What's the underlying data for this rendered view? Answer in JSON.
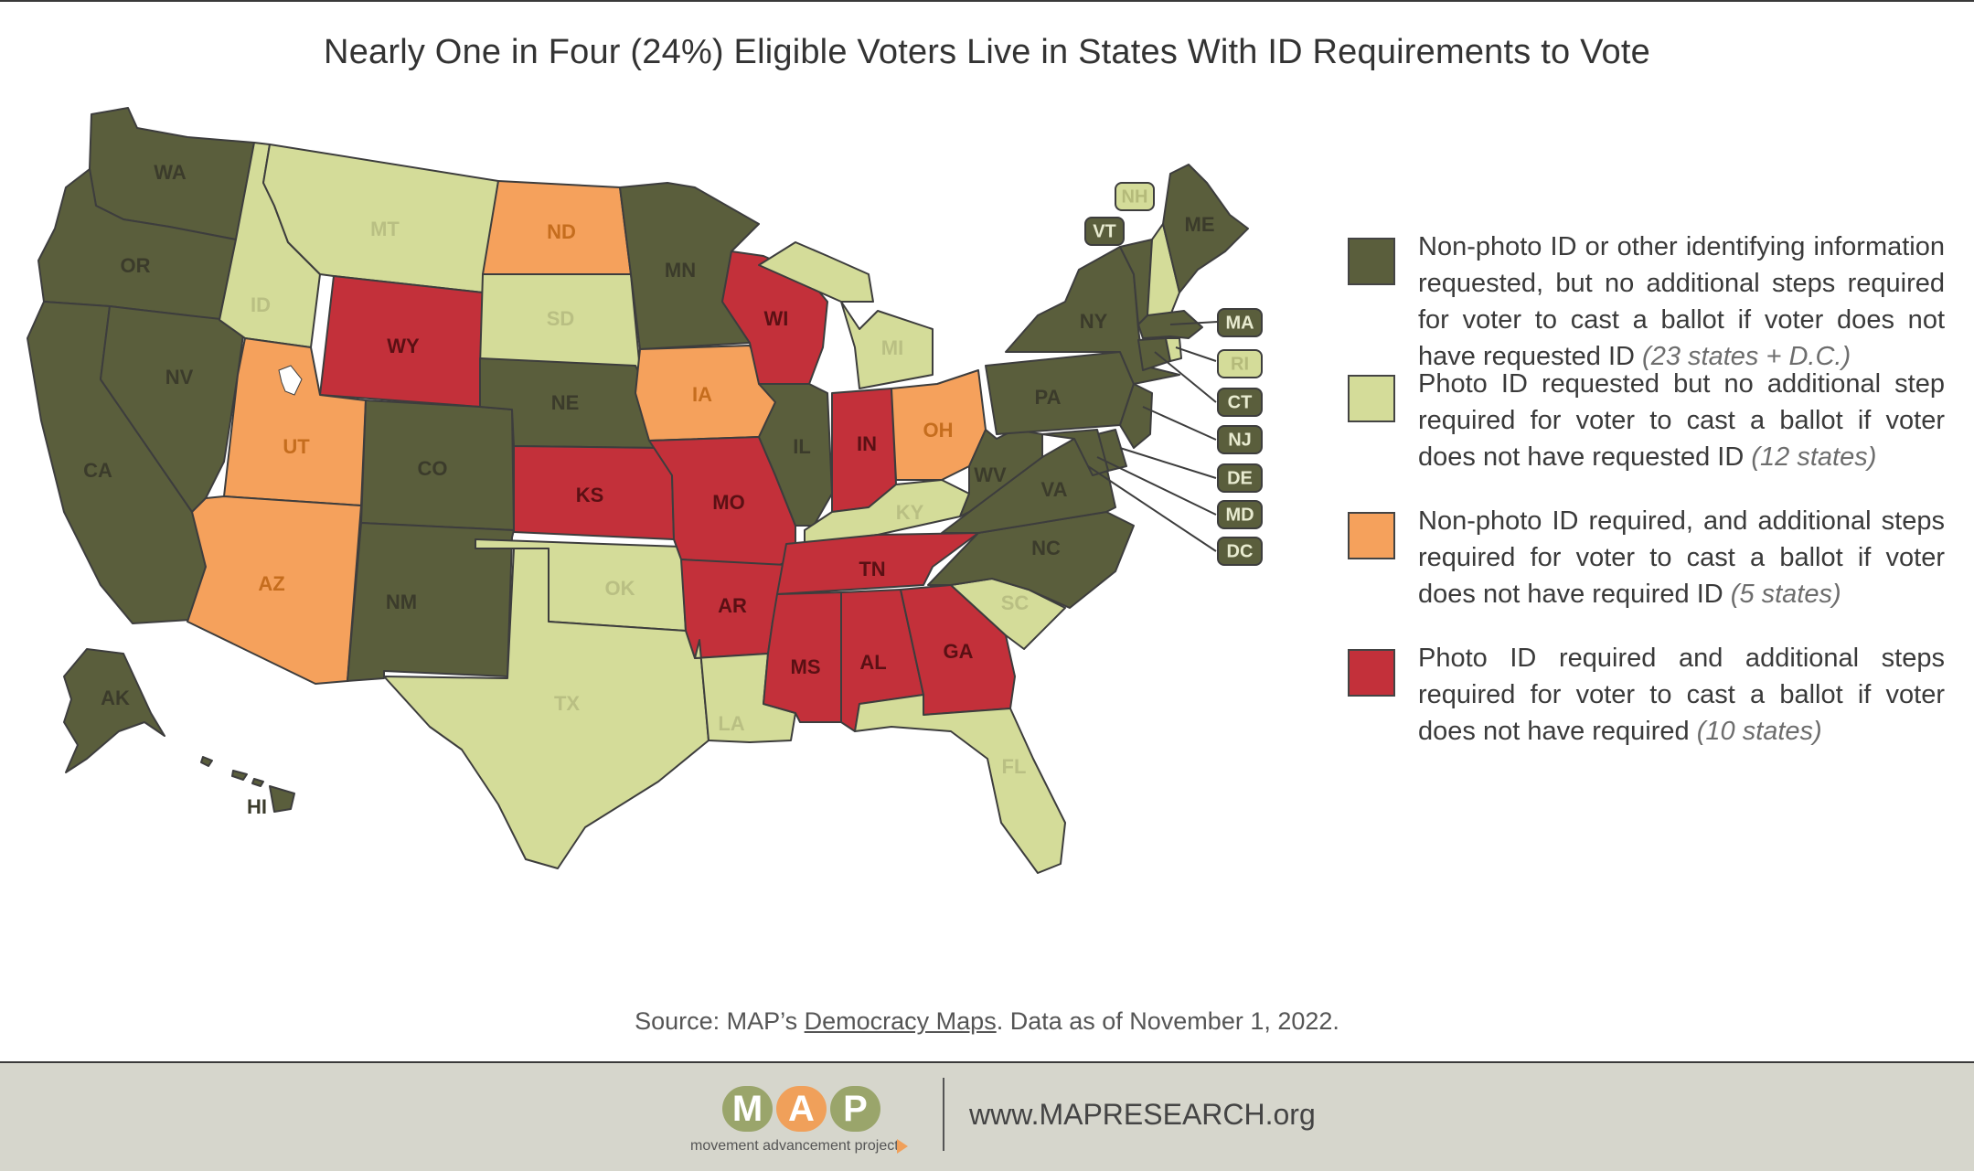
{
  "title": "Nearly One in Four (24%) Eligible Voters Live in States With ID Requirements to Vote",
  "colors": {
    "nonphoto_requested": "#5a5e3c",
    "photo_requested": "#d4dc99",
    "nonphoto_required": "#f5a15c",
    "photo_required": "#c3303a"
  },
  "legend": [
    {
      "category": "nonphoto_requested",
      "text": "Non-photo ID or other identifying information requested, but no additional steps required for voter to cast a ballot if voter does not have requested ID",
      "count": "(23 states + D.C.)"
    },
    {
      "category": "photo_requested",
      "text": "Photo ID requested but no additional step required for voter to cast a ballot if voter does not have requested ID",
      "count": "(12 states)"
    },
    {
      "category": "nonphoto_required",
      "text": "Non-photo ID required, and additional steps required for voter to cast a ballot if voter does not have required ID",
      "count": "(5 states)"
    },
    {
      "category": "photo_required",
      "text": "Photo ID required and additional steps required for voter to cast a ballot if voter does not have required",
      "count": "(10 states)"
    }
  ],
  "states": {
    "WA": "nonphoto_requested",
    "OR": "nonphoto_requested",
    "CA": "nonphoto_requested",
    "NV": "nonphoto_requested",
    "ID": "photo_requested",
    "MT": "photo_requested",
    "WY": "photo_required",
    "UT": "nonphoto_required",
    "AZ": "nonphoto_required",
    "CO": "nonphoto_requested",
    "NM": "nonphoto_requested",
    "ND": "nonphoto_required",
    "SD": "photo_requested",
    "NE": "nonphoto_requested",
    "KS": "photo_required",
    "OK": "photo_requested",
    "TX": "photo_requested",
    "MN": "nonphoto_requested",
    "IA": "nonphoto_required",
    "MO": "photo_required",
    "AR": "photo_required",
    "LA": "photo_requested",
    "WI": "photo_required",
    "IL": "nonphoto_requested",
    "MI": "photo_requested",
    "IN": "photo_required",
    "OH": "nonphoto_required",
    "KY": "photo_requested",
    "TN": "photo_required",
    "MS": "photo_required",
    "AL": "photo_required",
    "GA": "photo_required",
    "FL": "photo_requested",
    "SC": "photo_requested",
    "NC": "nonphoto_requested",
    "VA": "nonphoto_requested",
    "WV": "nonphoto_requested",
    "PA": "nonphoto_requested",
    "NY": "nonphoto_requested",
    "VT": "nonphoto_requested",
    "NH": "photo_requested",
    "ME": "nonphoto_requested",
    "MA": "nonphoto_requested",
    "RI": "photo_requested",
    "CT": "nonphoto_requested",
    "NJ": "nonphoto_requested",
    "DE": "nonphoto_requested",
    "MD": "nonphoto_requested",
    "DC": "nonphoto_requested",
    "AK": "nonphoto_requested",
    "HI": "nonphoto_requested"
  },
  "source": {
    "prefix": "Source: MAP’s ",
    "link": "Democracy Maps",
    "suffix": ". Data as of November 1, 2022."
  },
  "footer": {
    "logo_letters": [
      "M",
      "A",
      "P"
    ],
    "logo_colors": [
      "#9aa56b",
      "#f0a05a",
      "#9aa56b"
    ],
    "tagline": "movement advancement project",
    "url": "www.MAPRESEARCH.org"
  }
}
